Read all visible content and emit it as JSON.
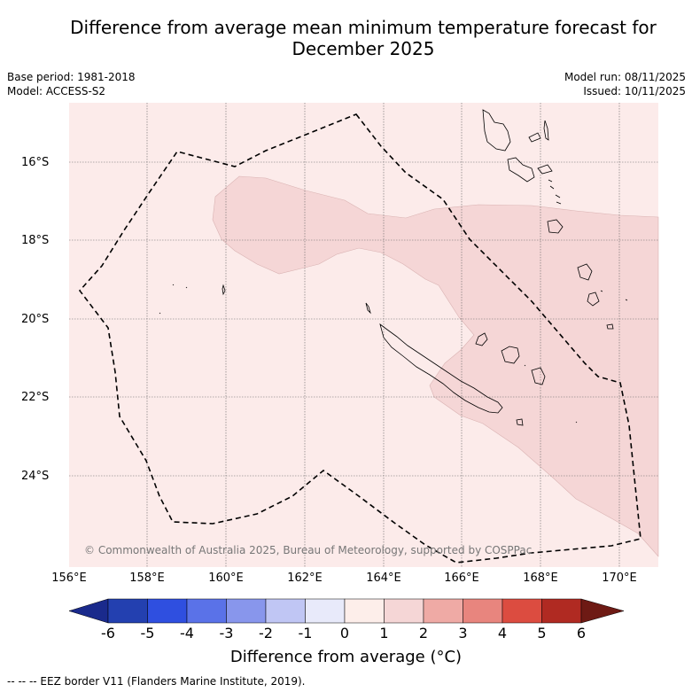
{
  "title_line1": "Difference from average mean minimum temperature forecast for",
  "title_line2": "December 2025",
  "base_period": "Base period: 1981-2018",
  "model": "Model: ACCESS-S2",
  "model_run": "Model run: 08/11/2025",
  "issued": "Issued: 10/11/2025",
  "copyright": "© Commonwealth of Australia 2025, Bureau of Meteorology, supported by COSPPac",
  "lat_labels": [
    "16°S",
    "18°S",
    "20°S",
    "22°S",
    "24°S"
  ],
  "lon_labels": [
    "156°E",
    "158°E",
    "160°E",
    "162°E",
    "164°E",
    "166°E",
    "168°E",
    "170°E"
  ],
  "colorbar": {
    "ticks": [
      "-6",
      "-5",
      "-4",
      "-3",
      "-2",
      "-1",
      "0",
      "1",
      "2",
      "3",
      "4",
      "5",
      "6"
    ],
    "colors": [
      "#1a2a8c",
      "#2340b0",
      "#2f4fe0",
      "#5a72e8",
      "#8896ec",
      "#c0c6f4",
      "#e8eafa",
      "#fdeeea",
      "#f5d6d6",
      "#efaaa5",
      "#e8857e",
      "#dc4c40",
      "#b02a22",
      "#6e1a14"
    ],
    "title": "Difference from average (°C)"
  },
  "legend_footer": "-- -- -- EEZ border V11 (Flanders Marine Institute, 2019).",
  "colors": {
    "background_zone": "#fcebea",
    "warm_zone": "#f5d6d6",
    "grid": "#666666"
  }
}
